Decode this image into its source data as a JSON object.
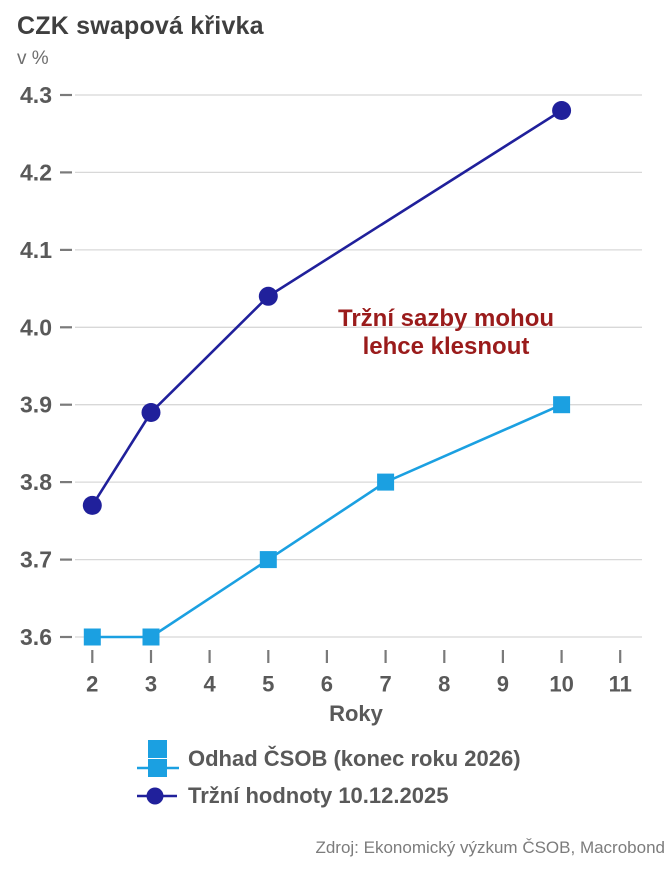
{
  "header": {
    "title": "CZK swapová křivka",
    "unit_label": "v %"
  },
  "annotation": {
    "line1": "Tržní sazby mohou",
    "line2": "lehce klesnout",
    "color": "#9a1b1b"
  },
  "legend": {
    "items": [
      {
        "label": "Odhad ČSOB (konec roku 2026)",
        "marker": "square",
        "color": "#1ba0e1"
      },
      {
        "label": "Tržní hodnoty 10.12.2025",
        "marker": "circle",
        "color": "#20209b"
      }
    ]
  },
  "footer": {
    "source": "Zdroj: Ekonomický výzkum ČSOB, Macrobond"
  },
  "chart_data": {
    "type": "line",
    "title": "CZK swapová křivka",
    "subtitle": "v %",
    "xlabel": "Roky",
    "ylabel": "",
    "x_ticks": [
      2,
      3,
      4,
      5,
      6,
      7,
      8,
      9,
      10,
      11
    ],
    "y_ticks": [
      3.6,
      3.7,
      3.8,
      3.9,
      4.0,
      4.1,
      4.2,
      4.3
    ],
    "xlim": [
      2,
      11
    ],
    "ylim": [
      3.6,
      4.3
    ],
    "grid": "horizontal-only",
    "legend_position": "bottom",
    "annotation_text": "Tržní sazby mohou lehce klesnout",
    "colors": {
      "grid": "#d8d8d8",
      "tick": "#7a7a7a",
      "axis_text": "#595959"
    },
    "series": [
      {
        "name": "Odhad ČSOB (konec roku 2026)",
        "marker": "square",
        "color": "#1ba0e1",
        "points": [
          [
            2,
            3.6
          ],
          [
            3,
            3.6
          ],
          [
            5,
            3.7
          ],
          [
            7,
            3.8
          ],
          [
            10,
            3.9
          ]
        ]
      },
      {
        "name": "Tržní hodnoty 10.12.2025",
        "marker": "circle",
        "color": "#20209b",
        "points": [
          [
            2,
            3.77
          ],
          [
            3,
            3.89
          ],
          [
            5,
            4.04
          ],
          [
            10,
            4.28
          ]
        ]
      }
    ]
  }
}
